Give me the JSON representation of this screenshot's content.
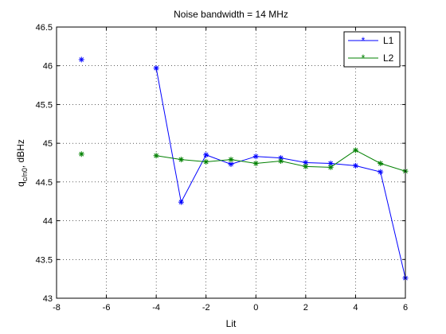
{
  "chart_data": {
    "type": "line",
    "title": "Noise bandwidth = 14 MHz",
    "xlabel": "Lit",
    "ylabel_main": "q",
    "ylabel_sub": "c/n0",
    "ylabel_rest": ", dBHz",
    "xlim": [
      -8,
      6
    ],
    "ylim": [
      43,
      46.5
    ],
    "xticks": [
      -8,
      -6,
      -4,
      -2,
      0,
      2,
      4,
      6
    ],
    "yticks": [
      43,
      43.5,
      44,
      44.5,
      45,
      45.5,
      46,
      46.5
    ],
    "xtick_labels": [
      "-8",
      "-6",
      "-4",
      "-2",
      "0",
      "2",
      "4",
      "6"
    ],
    "ytick_labels": [
      "43",
      "43.5",
      "44",
      "44.5",
      "45",
      "45.5",
      "46",
      "46.5"
    ],
    "grid": true,
    "legend_position": "top-right",
    "series": [
      {
        "name": "L1",
        "color": "#0000ff",
        "marker": "asterisk",
        "isolated_point": {
          "x": -7,
          "y": 46.08
        },
        "x": [
          -4,
          -3,
          -2,
          -1,
          0,
          1,
          2,
          3,
          4,
          5,
          6
        ],
        "y": [
          45.97,
          44.24,
          44.85,
          44.73,
          44.83,
          44.81,
          44.75,
          44.74,
          44.71,
          44.63,
          43.26
        ]
      },
      {
        "name": "L2",
        "color": "#008000",
        "marker": "asterisk",
        "isolated_point": {
          "x": -7,
          "y": 44.86
        },
        "x": [
          -4,
          -3,
          -2,
          -1,
          0,
          1,
          2,
          3,
          4,
          5,
          6
        ],
        "y": [
          44.84,
          44.79,
          44.76,
          44.79,
          44.74,
          44.77,
          44.7,
          44.69,
          44.91,
          44.74,
          44.64
        ]
      }
    ]
  }
}
